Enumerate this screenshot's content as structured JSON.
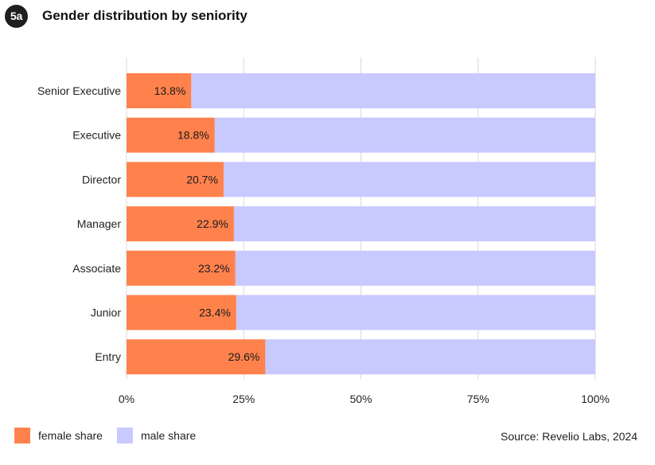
{
  "header": {
    "badge": "5a",
    "title": "Gender distribution by seniority"
  },
  "colors": {
    "female": "#ff824d",
    "male": "#c8c9ff",
    "grid": "#d9d9d9",
    "text": "#222222"
  },
  "legend": {
    "female_label": "female share",
    "male_label": "male share"
  },
  "source": "Source: Revelio Labs, 2024",
  "chart_data": {
    "type": "bar",
    "orientation": "horizontal",
    "stacked": true,
    "title": "Gender distribution by seniority",
    "categories": [
      "Senior Executive",
      "Executive",
      "Director",
      "Manager",
      "Associate",
      "Junior",
      "Entry"
    ],
    "series": [
      {
        "name": "female share",
        "values": [
          13.8,
          18.8,
          20.7,
          22.9,
          23.2,
          23.4,
          29.6
        ]
      },
      {
        "name": "male share",
        "values": [
          86.2,
          81.2,
          79.3,
          77.1,
          76.8,
          76.6,
          70.4
        ]
      }
    ],
    "data_labels": [
      "13.8%",
      "18.8%",
      "20.7%",
      "22.9%",
      "23.2%",
      "23.4%",
      "29.6%"
    ],
    "xlim": [
      0,
      100
    ],
    "x_ticks": [
      0,
      25,
      50,
      75,
      100
    ],
    "x_tick_labels": [
      "0%",
      "25%",
      "50%",
      "75%",
      "100%"
    ],
    "grid": true,
    "legend_position": "bottom-left"
  }
}
